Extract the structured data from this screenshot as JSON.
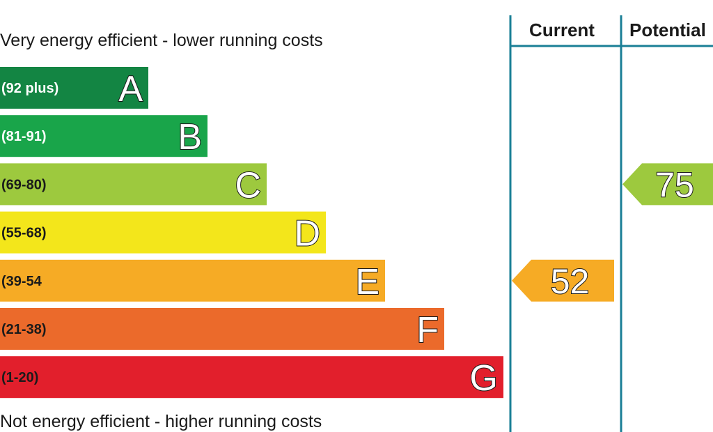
{
  "chart_data": {
    "type": "bar",
    "top_label": "Very energy efficient - lower running costs",
    "bottom_label": "Not energy efficient - higher running costs",
    "columns": {
      "current": "Current",
      "potential": "Potential"
    },
    "bands": [
      {
        "letter": "A",
        "range": "(92 plus)",
        "min": 92,
        "max": 100,
        "color": "#138543",
        "label_color": "#ffffff"
      },
      {
        "letter": "B",
        "range": "(81-91)",
        "min": 81,
        "max": 91,
        "color": "#19a54a",
        "label_color": "#ffffff"
      },
      {
        "letter": "C",
        "range": "(69-80)",
        "min": 69,
        "max": 80,
        "color": "#9dc93e",
        "label_color": "#1a1a1a"
      },
      {
        "letter": "D",
        "range": "(55-68)",
        "min": 55,
        "max": 68,
        "color": "#f3e61b",
        "label_color": "#1a1a1a"
      },
      {
        "letter": "E",
        "range": "(39-54",
        "min": 39,
        "max": 54,
        "color": "#f6ab25",
        "label_color": "#1a1a1a"
      },
      {
        "letter": "F",
        "range": "(21-38)",
        "min": 21,
        "max": 38,
        "color": "#eb6a2b",
        "label_color": "#1a1a1a"
      },
      {
        "letter": "G",
        "range": "(1-20)",
        "min": 1,
        "max": 20,
        "color": "#e21f2c",
        "label_color": "#1a1a1a"
      }
    ],
    "ratings": {
      "current": {
        "value": 52,
        "band": "E",
        "color": "#f6ab25"
      },
      "potential": {
        "value": 75,
        "band": "C",
        "color": "#9dc93e"
      }
    },
    "divider_color": "#1a7f96"
  }
}
